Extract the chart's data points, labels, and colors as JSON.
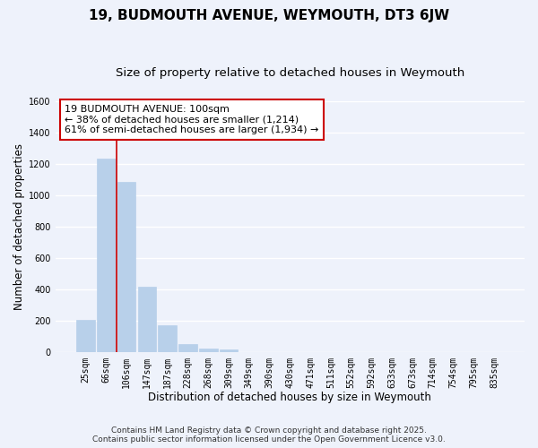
{
  "title": "19, BUDMOUTH AVENUE, WEYMOUTH, DT3 6JW",
  "subtitle": "Size of property relative to detached houses in Weymouth",
  "xlabel": "Distribution of detached houses by size in Weymouth",
  "ylabel": "Number of detached properties",
  "bar_labels": [
    "25sqm",
    "66sqm",
    "106sqm",
    "147sqm",
    "187sqm",
    "228sqm",
    "268sqm",
    "309sqm",
    "349sqm",
    "390sqm",
    "430sqm",
    "471sqm",
    "511sqm",
    "552sqm",
    "592sqm",
    "633sqm",
    "673sqm",
    "714sqm",
    "754sqm",
    "795sqm",
    "835sqm"
  ],
  "bar_values": [
    205,
    1235,
    1085,
    415,
    170,
    50,
    20,
    15,
    0,
    0,
    0,
    0,
    0,
    0,
    0,
    0,
    0,
    0,
    0,
    0,
    0
  ],
  "bar_color": "#b8d0ea",
  "bar_edge_color": "#b8d0ea",
  "property_line_x": 1.5,
  "property_line_color": "#cc0000",
  "annotation_line1": "19 BUDMOUTH AVENUE: 100sqm",
  "annotation_line2": "← 38% of detached houses are smaller (1,214)",
  "annotation_line3": "61% of semi-detached houses are larger (1,934) →",
  "annotation_box_color": "#ffffff",
  "annotation_box_edge": "#cc0000",
  "ylim": [
    0,
    1600
  ],
  "yticks": [
    0,
    200,
    400,
    600,
    800,
    1000,
    1200,
    1400,
    1600
  ],
  "footer_line1": "Contains HM Land Registry data © Crown copyright and database right 2025.",
  "footer_line2": "Contains public sector information licensed under the Open Government Licence v3.0.",
  "background_color": "#eef2fb",
  "grid_color": "#ffffff",
  "title_fontsize": 11,
  "subtitle_fontsize": 9.5,
  "axis_label_fontsize": 8.5,
  "tick_fontsize": 7,
  "annotation_fontsize": 8,
  "footer_fontsize": 6.5
}
